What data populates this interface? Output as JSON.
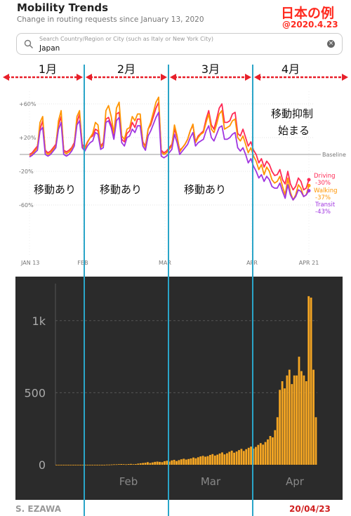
{
  "header": {
    "title": "Mobility Trends",
    "subtitle": "Change in routing requests since January 13, 2020",
    "jp_title": "日本の例",
    "jp_date": "@2020.4.23"
  },
  "search": {
    "placeholder": "Search Country/Region or City (such as Italy or New York City)",
    "value": "Japan"
  },
  "months": [
    "1月",
    "2月",
    "3月",
    "4月"
  ],
  "annotations": {
    "move1": "移動あり",
    "move2": "移動あり",
    "move3": "移動あり",
    "restrict_line1": "移動抑制",
    "restrict_line2": "始まる"
  },
  "footer": {
    "credit": "S. EZAWA",
    "date": "20/04/23"
  },
  "colors": {
    "driving": "#ff2a55",
    "walking": "#ff9500",
    "transit": "#a035e0",
    "divider": "#2aa5c8",
    "arrow": "#e8202a",
    "bar": "#f5a623",
    "bar_bg": "#2b2b2b"
  },
  "chart_data": [
    {
      "type": "line",
      "title": "Mobility Trends",
      "x_start": "2020-01-13",
      "x_end": "2020-04-21",
      "x_ticks": [
        "JAN 13",
        "FEB",
        "MAR",
        "APR",
        "APR 21"
      ],
      "y_ticks": [
        "+60%",
        "+20%",
        "-20%",
        "-60%"
      ],
      "y_tick_values": [
        60,
        20,
        -20,
        -60
      ],
      "ylim": [
        -75,
        75
      ],
      "baseline_label": "Baseline",
      "end_labels": [
        {
          "name": "Driving",
          "value": "-30%"
        },
        {
          "name": "Walking",
          "value": "-37%"
        },
        {
          "name": "Transit",
          "value": "-43%"
        }
      ],
      "series": [
        {
          "name": "Driving",
          "color": "#ff2a55",
          "values": [
            0,
            2,
            6,
            10,
            30,
            40,
            5,
            2,
            4,
            8,
            12,
            35,
            45,
            5,
            3,
            5,
            8,
            14,
            38,
            48,
            12,
            8,
            15,
            20,
            22,
            30,
            28,
            10,
            14,
            42,
            44,
            35,
            22,
            48,
            50,
            18,
            15,
            25,
            28,
            38,
            32,
            42,
            42,
            15,
            10,
            30,
            35,
            45,
            55,
            62,
            5,
            2,
            4,
            8,
            12,
            30,
            20,
            5,
            8,
            12,
            18,
            28,
            35,
            15,
            22,
            25,
            28,
            42,
            52,
            35,
            30,
            42,
            55,
            60,
            38,
            38,
            40,
            48,
            50,
            25,
            22,
            30,
            20,
            10,
            15,
            5,
            0,
            -10,
            -5,
            -15,
            -8,
            -12,
            -20,
            -25,
            -24,
            -18,
            -30,
            -35,
            -20,
            -35,
            -42,
            -38,
            -28,
            -32,
            -42,
            -40,
            -30
          ]
        },
        {
          "name": "Walking",
          "color": "#ff9500",
          "values": [
            -2,
            0,
            4,
            8,
            38,
            45,
            3,
            0,
            2,
            6,
            10,
            40,
            52,
            3,
            1,
            3,
            6,
            12,
            45,
            52,
            10,
            6,
            14,
            20,
            25,
            38,
            35,
            8,
            12,
            52,
            58,
            45,
            25,
            55,
            62,
            22,
            18,
            30,
            32,
            45,
            40,
            48,
            48,
            14,
            8,
            30,
            38,
            50,
            62,
            68,
            3,
            0,
            2,
            6,
            10,
            35,
            22,
            3,
            8,
            12,
            18,
            28,
            36,
            14,
            20,
            24,
            26,
            38,
            48,
            30,
            26,
            36,
            48,
            52,
            30,
            32,
            34,
            40,
            42,
            20,
            16,
            22,
            12,
            2,
            8,
            -2,
            -8,
            -18,
            -12,
            -24,
            -15,
            -20,
            -30,
            -34,
            -32,
            -26,
            -38,
            -48,
            -28,
            -45,
            -54,
            -48,
            -36,
            -40,
            -50,
            -48,
            -37
          ]
        },
        {
          "name": "Transit",
          "color": "#a035e0",
          "values": [
            -3,
            -1,
            2,
            5,
            28,
            32,
            0,
            -2,
            0,
            4,
            8,
            30,
            38,
            0,
            -2,
            0,
            4,
            10,
            35,
            40,
            8,
            4,
            10,
            14,
            16,
            26,
            24,
            6,
            8,
            38,
            40,
            32,
            18,
            40,
            44,
            14,
            10,
            20,
            22,
            30,
            26,
            34,
            34,
            10,
            5,
            22,
            28,
            36,
            44,
            50,
            -2,
            -4,
            -2,
            2,
            6,
            24,
            14,
            0,
            4,
            8,
            12,
            20,
            26,
            10,
            14,
            16,
            18,
            28,
            34,
            20,
            16,
            24,
            32,
            34,
            18,
            18,
            20,
            24,
            26,
            8,
            4,
            8,
            0,
            -10,
            -5,
            -14,
            -20,
            -28,
            -24,
            -32,
            -26,
            -30,
            -38,
            -40,
            -40,
            -34,
            -44,
            -52,
            -36,
            -48,
            -54,
            -50,
            -42,
            -44,
            -50,
            -48,
            -43
          ]
        }
      ]
    },
    {
      "type": "bar",
      "xlabel": "",
      "ylabel": "",
      "y_ticks": [
        "1k",
        "500",
        "0"
      ],
      "y_tick_values": [
        1000,
        500,
        0
      ],
      "ylim": [
        0,
        1150
      ],
      "x_ticks": [
        "Feb",
        "Mar",
        "Apr"
      ],
      "values": [
        0,
        0,
        0,
        0,
        0,
        0,
        0,
        0,
        0,
        0,
        0,
        0,
        0,
        0,
        0,
        0,
        0,
        0,
        0,
        0,
        0,
        1,
        1,
        2,
        3,
        3,
        4,
        5,
        4,
        3,
        5,
        6,
        4,
        5,
        8,
        10,
        12,
        14,
        18,
        12,
        16,
        20,
        22,
        20,
        18,
        25,
        28,
        22,
        30,
        34,
        26,
        32,
        38,
        42,
        36,
        40,
        44,
        50,
        45,
        52,
        58,
        62,
        56,
        60,
        68,
        74,
        64,
        70,
        78,
        86,
        72,
        80,
        90,
        98,
        84,
        92,
        102,
        110,
        96,
        108,
        118,
        126,
        112,
        124,
        138,
        150,
        140,
        158,
        176,
        200,
        190,
        240,
        330,
        520,
        580,
        530,
        620,
        660,
        560,
        620,
        620,
        750,
        650,
        620,
        580,
        1170,
        1160,
        660,
        330
      ]
    }
  ]
}
